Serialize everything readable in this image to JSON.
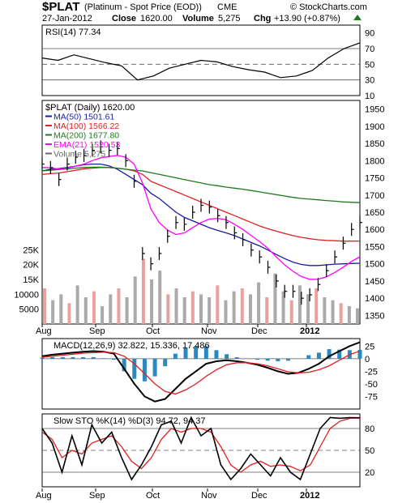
{
  "header": {
    "symbol": "$PLAT",
    "name": "(Platinum  - Spot Price (EOD))",
    "exchange": "CME",
    "watermark": "© StockCharts.com",
    "date": "27-Jan-2012",
    "close_label": "Close",
    "close": "1620.00",
    "volume_label": "Volume",
    "volume": "5,275",
    "chg_label": "Chg",
    "chg": "+13.90 (+0.87%)"
  },
  "colors": {
    "price": "#000000",
    "ma50": "#1a1aa0",
    "ma100": "#e02020",
    "ma200": "#1e7a1e",
    "ema21": "#ff00ff",
    "volume": "#aaaaaa",
    "volume_down": "#e8a0a0",
    "macd_hist": "#2a8ac0",
    "rsi_fill": "#808000",
    "rsi_fill_low": "#c08080",
    "up_arrow": "#1e7a1e"
  },
  "chart_data": [
    {
      "type": "line",
      "panel": "rsi",
      "legend": "RSI(14) 77.34",
      "ylim": [
        10,
        100
      ],
      "yticks": [
        "90",
        "70",
        "50",
        "30",
        "10"
      ],
      "reference_lines": [
        70,
        50,
        30
      ],
      "x_dates": [
        "2011-08-01",
        "2011-08-10",
        "2011-08-20",
        "2011-09-01",
        "2011-09-10",
        "2011-09-20",
        "2011-09-26",
        "2011-10-01",
        "2011-10-10",
        "2011-10-20",
        "2011-11-01",
        "2011-11-10",
        "2011-11-20",
        "2011-12-01",
        "2011-12-10",
        "2011-12-20",
        "2011-12-29",
        "2012-01-05",
        "2012-01-12",
        "2012-01-20",
        "2012-01-27"
      ],
      "values": [
        58,
        55,
        62,
        57,
        52,
        48,
        30,
        35,
        45,
        50,
        55,
        53,
        47,
        43,
        40,
        33,
        35,
        42,
        58,
        70,
        77.34
      ]
    },
    {
      "type": "line",
      "panel": "price",
      "legend_title": "$PLAT (Daily) 1620.00",
      "ylim": [
        1325,
        1975
      ],
      "yticks": [
        "1950",
        "1900",
        "1850",
        "1800",
        "1750",
        "1700",
        "1650",
        "1600",
        "1550",
        "1500",
        "1450",
        "1400",
        "1350"
      ],
      "xlabels": [
        "Aug",
        "Sep",
        "Oct",
        "Nov",
        "Dec",
        "2012"
      ],
      "series": [
        {
          "name": "$PLAT",
          "kind": "ohlc",
          "dates": [
            "2011-08-01",
            "2011-08-05",
            "2011-08-10",
            "2011-08-15",
            "2011-08-20",
            "2011-08-25",
            "2011-09-01",
            "2011-09-05",
            "2011-09-10",
            "2011-09-15",
            "2011-09-20",
            "2011-09-23",
            "2011-09-26",
            "2011-10-01",
            "2011-10-05",
            "2011-10-10",
            "2011-10-15",
            "2011-10-20",
            "2011-10-25",
            "2011-11-01",
            "2011-11-05",
            "2011-11-10",
            "2011-11-15",
            "2011-11-20",
            "2011-11-25",
            "2011-12-01",
            "2011-12-05",
            "2011-12-10",
            "2011-12-15",
            "2011-12-20",
            "2011-12-25",
            "2011-12-29",
            "2012-01-03",
            "2012-01-08",
            "2012-01-12",
            "2012-01-16",
            "2012-01-20",
            "2012-01-24",
            "2012-01-27"
          ],
          "close": [
            1790,
            1780,
            1745,
            1790,
            1810,
            1815,
            1830,
            1840,
            1830,
            1835,
            1800,
            1740,
            1530,
            1500,
            1530,
            1580,
            1620,
            1615,
            1650,
            1670,
            1665,
            1640,
            1620,
            1590,
            1570,
            1540,
            1520,
            1490,
            1450,
            1420,
            1420,
            1400,
            1410,
            1440,
            1480,
            1520,
            1560,
            1600,
            1620
          ]
        },
        {
          "name": "MA(50) 1501.61",
          "values": [
            1770,
            1775,
            1777,
            1780,
            1784,
            1788,
            1790,
            1790,
            1785,
            1775,
            1760,
            1745,
            1730,
            1705,
            1690,
            1670,
            1650,
            1635,
            1625,
            1615,
            1605,
            1597,
            1590,
            1582,
            1572,
            1562,
            1552,
            1540,
            1527,
            1515,
            1505,
            1498,
            1495,
            1495,
            1497,
            1499,
            1500,
            1501,
            1501.61
          ]
        },
        {
          "name": "MA(100) 1566.22",
          "values": [
            1760,
            1762,
            1764,
            1768,
            1772,
            1776,
            1778,
            1780,
            1780,
            1778,
            1775,
            1770,
            1760,
            1740,
            1730,
            1720,
            1710,
            1700,
            1690,
            1680,
            1670,
            1660,
            1650,
            1640,
            1630,
            1620,
            1610,
            1602,
            1595,
            1588,
            1582,
            1577,
            1573,
            1570,
            1568,
            1567,
            1566,
            1566,
            1566.22
          ]
        },
        {
          "name": "MA(200) 1677.80",
          "values": [
            1770,
            1772,
            1774,
            1776,
            1778,
            1780,
            1781,
            1781,
            1780,
            1778,
            1775,
            1772,
            1770,
            1765,
            1760,
            1755,
            1750,
            1745,
            1740,
            1735,
            1730,
            1727,
            1723,
            1720,
            1717,
            1713,
            1709,
            1705,
            1701,
            1697,
            1693,
            1690,
            1688,
            1686,
            1684,
            1682,
            1680,
            1679,
            1677.8
          ]
        },
        {
          "name": "EMA(21) 1520.53",
          "values": [
            1780,
            1779,
            1775,
            1778,
            1784,
            1790,
            1800,
            1808,
            1812,
            1815,
            1810,
            1790,
            1735,
            1660,
            1620,
            1598,
            1585,
            1590,
            1605,
            1620,
            1630,
            1632,
            1628,
            1615,
            1600,
            1582,
            1565,
            1545,
            1520,
            1497,
            1478,
            1463,
            1455,
            1455,
            1462,
            1475,
            1490,
            1507,
            1520.53
          ]
        },
        {
          "name": "Volume 5,275",
          "kind": "volume",
          "values": [
            12000,
            8000,
            10000,
            7000,
            13000,
            9000,
            11000,
            6000,
            10000,
            12000,
            9000,
            16000,
            22000,
            15000,
            18000,
            10000,
            12000,
            9000,
            11000,
            10000,
            9000,
            13000,
            8000,
            11000,
            12000,
            10000,
            14000,
            9000,
            17000,
            11000,
            8000,
            13000,
            10000,
            12000,
            9000,
            8000,
            7000,
            6000,
            5275
          ]
        }
      ],
      "volume_ticks": [
        "25K",
        "20K",
        "15K",
        "10000",
        "5000"
      ]
    },
    {
      "type": "line",
      "panel": "macd",
      "legend": "MACD(12,26,9) 32.822, 15.336, 17.486",
      "ylim": [
        -100,
        40
      ],
      "yticks": [
        "25",
        "0",
        "-25",
        "-50",
        "-75"
      ],
      "series": [
        {
          "name": "MACD",
          "values": [
            5,
            8,
            10,
            12,
            14,
            15,
            14,
            10,
            -20,
            -50,
            -75,
            -85,
            -80,
            -60,
            -40,
            -25,
            -10,
            -5,
            -3,
            -5,
            -8,
            -12,
            -18,
            -25,
            -30,
            -28,
            -20,
            -10,
            5,
            15,
            25,
            32.822
          ]
        },
        {
          "name": "Signal",
          "values": [
            3,
            5,
            7,
            9,
            11,
            12,
            13,
            12,
            5,
            -10,
            -30,
            -50,
            -65,
            -70,
            -62,
            -50,
            -35,
            -22,
            -12,
            -8,
            -8,
            -10,
            -14,
            -20,
            -26,
            -28,
            -27,
            -22,
            -14,
            -3,
            8,
            15.336
          ]
        },
        {
          "name": "Histogram",
          "values": [
            2,
            3,
            3,
            3,
            3,
            3,
            1,
            -2,
            -25,
            -40,
            -45,
            -35,
            -15,
            10,
            22,
            25,
            25,
            17,
            9,
            3,
            0,
            -2,
            -4,
            -5,
            -4,
            0,
            7,
            12,
            19,
            18,
            17,
            17.486
          ]
        }
      ]
    },
    {
      "type": "line",
      "panel": "stochastic",
      "legend": "Slow STO %K(14) %D(3) 94.72, 94.37",
      "ylim": [
        0,
        100
      ],
      "yticks": [
        "80",
        "50",
        "20"
      ],
      "reference_lines": [
        80,
        50,
        20
      ],
      "series": [
        {
          "name": "%K",
          "values": [
            80,
            60,
            20,
            70,
            30,
            85,
            60,
            75,
            40,
            10,
            30,
            55,
            85,
            90,
            60,
            95,
            70,
            80,
            30,
            10,
            25,
            45,
            30,
            15,
            40,
            20,
            10,
            45,
            80,
            95,
            94,
            95,
            94.72
          ]
        },
        {
          "name": "%D",
          "values": [
            75,
            65,
            40,
            50,
            45,
            60,
            65,
            70,
            55,
            35,
            25,
            40,
            65,
            80,
            75,
            80,
            80,
            75,
            55,
            30,
            20,
            30,
            35,
            28,
            30,
            28,
            22,
            30,
            55,
            80,
            90,
            94,
            94.37
          ]
        }
      ],
      "xlabels": [
        "Aug",
        "Sep",
        "Oct",
        "Nov",
        "Dec",
        "2012"
      ]
    }
  ]
}
